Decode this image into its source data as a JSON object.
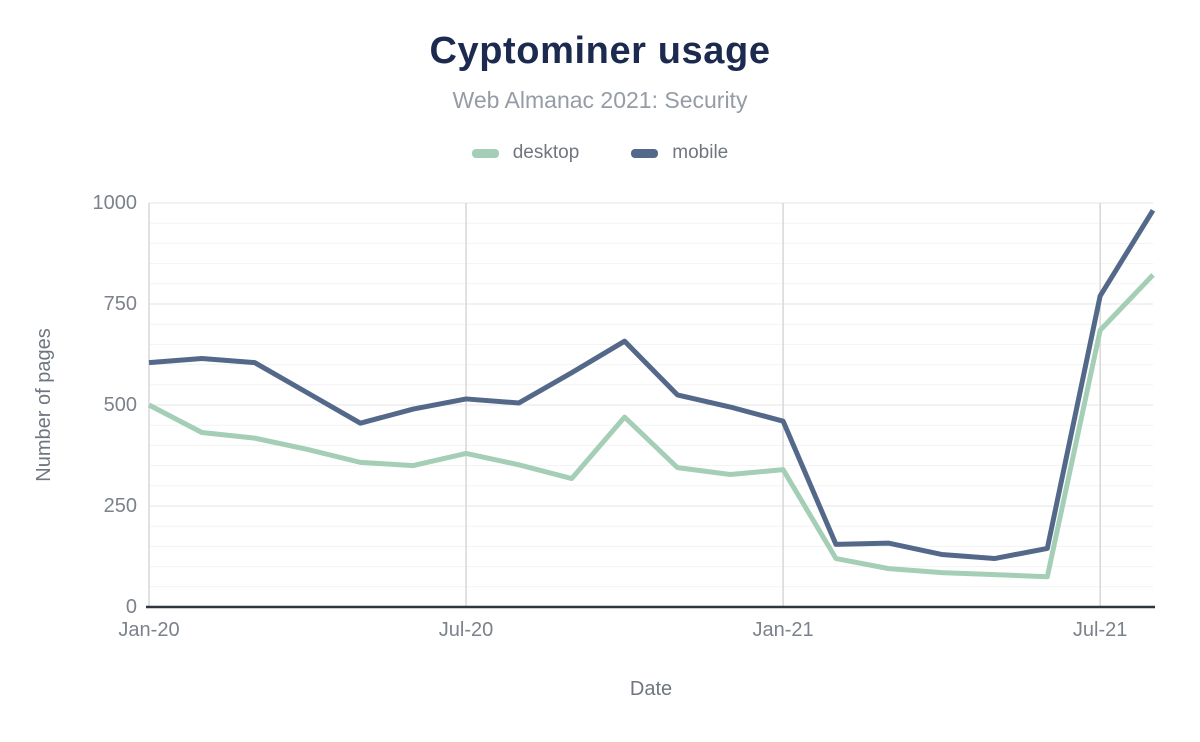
{
  "title": "Cyptominer usage",
  "subtitle": "Web Almanac 2021: Security",
  "legend": [
    {
      "label": "desktop",
      "color": "#a4ceb5"
    },
    {
      "label": "mobile",
      "color": "#54688a"
    }
  ],
  "colors": {
    "title": "#1b2a4e",
    "subtitle": "#959ca5",
    "tick_label": "#7b828b",
    "axis_title": "#6f7680",
    "axis_line": "#30363d",
    "major_gridline": "#e4e4e4",
    "minor_gridline": "#f3f3f3",
    "vertical_gridline": "#d7d7d7",
    "background": "#ffffff"
  },
  "chart_data": {
    "type": "line",
    "title": "Cyptominer usage",
    "subtitle": "Web Almanac 2021: Security",
    "xlabel": "Date",
    "ylabel": "Number of pages",
    "ylim": [
      0,
      1000
    ],
    "y_ticks": [
      0,
      250,
      500,
      750,
      1000
    ],
    "y_tick_labels": [
      "0",
      "250",
      "500",
      "750",
      "1000"
    ],
    "y_minor_step": 50,
    "grid": true,
    "legend_position": "top",
    "categories": [
      "Jan-20",
      "Feb-20",
      "Mar-20",
      "Apr-20",
      "May-20",
      "Jun-20",
      "Jul-20",
      "Aug-20",
      "Sep-20",
      "Oct-20",
      "Nov-20",
      "Dec-20",
      "Jan-21",
      "Feb-21",
      "Mar-21",
      "Apr-21",
      "May-21",
      "Jun-21",
      "Jul-21",
      "Aug-21"
    ],
    "x_tick_indices": [
      0,
      6,
      12,
      18
    ],
    "x_tick_labels": [
      "Jan-20",
      "Jul-20",
      "Jan-21",
      "Jul-21"
    ],
    "series": [
      {
        "name": "desktop",
        "color": "#a4ceb5",
        "values": [
          500,
          432,
          418,
          390,
          358,
          350,
          380,
          352,
          318,
          470,
          345,
          328,
          340,
          120,
          95,
          85,
          80,
          75,
          685,
          822
        ]
      },
      {
        "name": "mobile",
        "color": "#54688a",
        "values": [
          605,
          615,
          605,
          530,
          455,
          490,
          515,
          505,
          580,
          658,
          525,
          495,
          460,
          155,
          158,
          130,
          120,
          145,
          770,
          982
        ]
      }
    ]
  }
}
